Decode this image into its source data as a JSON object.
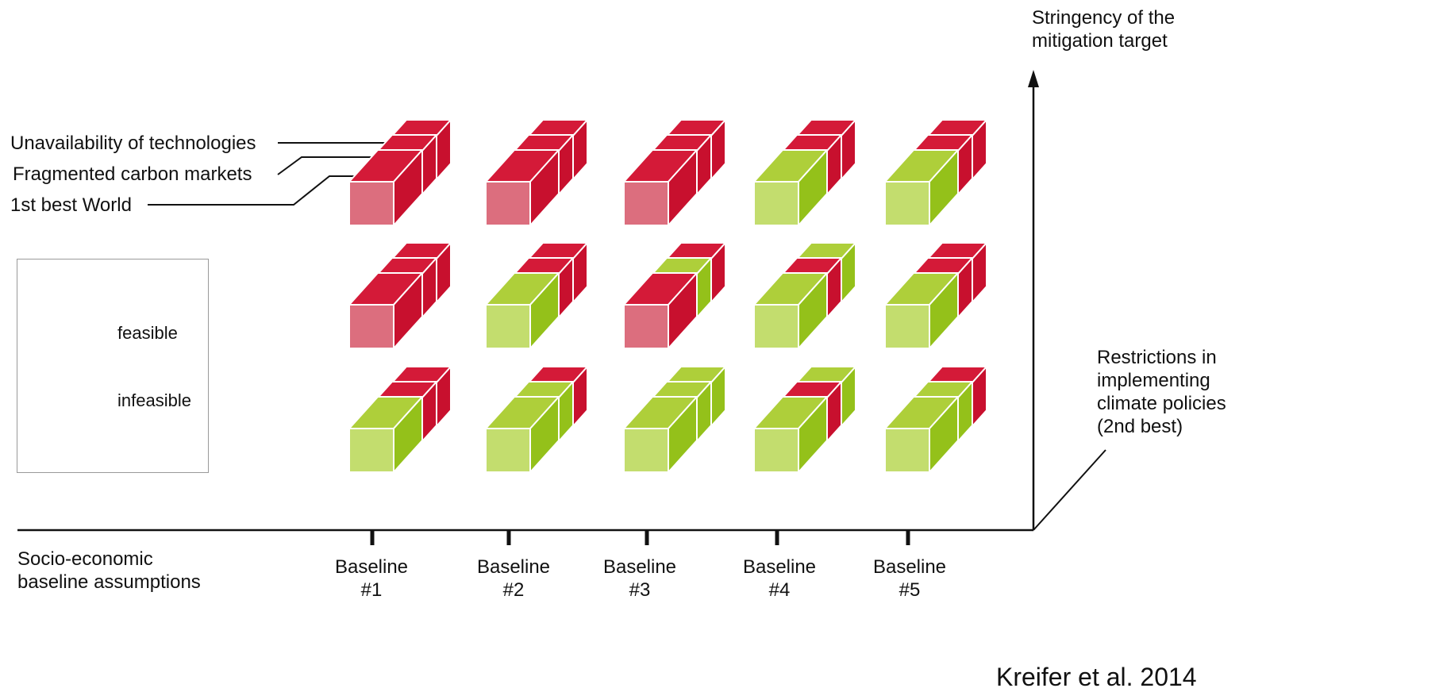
{
  "variant_labels": {
    "unavailability": "Unavailability of technologies",
    "fragmented": "Fragmented carbon markets",
    "first_best": "1st best World"
  },
  "legend": {
    "feasible": "feasible",
    "infeasible": "infeasible"
  },
  "axes": {
    "y_label_line1": "Stringency of the",
    "y_label_line2": "mitigation target",
    "z_label_line1": "Restrictions in",
    "z_label_line2": "implementing",
    "z_label_line3": "climate policies",
    "z_label_line4": "(2nd best)",
    "x_label_line1": "Socio-economic",
    "x_label_line2": "baseline assumptions"
  },
  "baselines": [
    {
      "line1": "Baseline",
      "line2": "#1"
    },
    {
      "line1": "Baseline",
      "line2": "#2"
    },
    {
      "line1": "Baseline",
      "line2": "#3"
    },
    {
      "line1": "Baseline",
      "line2": "#4"
    },
    {
      "line1": "Baseline",
      "line2": "#5"
    }
  ],
  "citation": "Kreifer et al. 2014",
  "colors": {
    "feasible_front": "#c3dd6e",
    "feasible_side": "#94c11a",
    "feasible_top": "#aecf3a",
    "infeasible_front": "#dc6e7e",
    "infeasible_side": "#c8102e",
    "infeasible_top": "#d41a38"
  },
  "grid": {
    "row_order": "top to bottom (highest stringency first)",
    "layer_order": "front (1st best World), middle (Fragmented carbon markets), back (Unavailability of technologies)",
    "states": [
      [
        [
          "infeasible",
          "infeasible",
          "infeasible"
        ],
        [
          "infeasible",
          "infeasible",
          "infeasible"
        ],
        [
          "infeasible",
          "infeasible",
          "infeasible"
        ],
        [
          "feasible",
          "infeasible",
          "infeasible"
        ],
        [
          "feasible",
          "infeasible",
          "infeasible"
        ]
      ],
      [
        [
          "infeasible",
          "infeasible",
          "infeasible"
        ],
        [
          "feasible",
          "infeasible",
          "infeasible"
        ],
        [
          "infeasible",
          "feasible",
          "infeasible"
        ],
        [
          "feasible",
          "infeasible",
          "feasible"
        ],
        [
          "feasible",
          "infeasible",
          "infeasible"
        ]
      ],
      [
        [
          "feasible",
          "infeasible",
          "infeasible"
        ],
        [
          "feasible",
          "feasible",
          "infeasible"
        ],
        [
          "feasible",
          "feasible",
          "feasible"
        ],
        [
          "feasible",
          "infeasible",
          "feasible"
        ],
        [
          "feasible",
          "feasible",
          "infeasible"
        ]
      ]
    ]
  }
}
